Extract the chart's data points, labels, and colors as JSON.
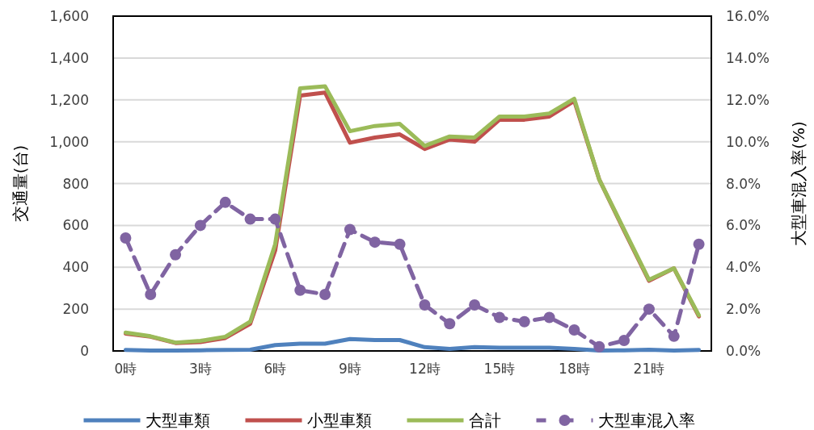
{
  "chart_data": {
    "type": "line",
    "xlabel": null,
    "ylabel": "交通量(台)",
    "y2label": "大型車混入率(%)",
    "categories": [
      "0時",
      null,
      null,
      "3時",
      null,
      null,
      "6時",
      null,
      null,
      "9時",
      null,
      null,
      "12時",
      null,
      null,
      "15時",
      null,
      null,
      "18時",
      null,
      null,
      "21時",
      null,
      null
    ],
    "ylim": [
      0,
      1600
    ],
    "yticks": [
      {
        "value": 0,
        "label": "0"
      },
      {
        "value": 200,
        "label": "200"
      },
      {
        "value": 400,
        "label": "400"
      },
      {
        "value": 600,
        "label": "600"
      },
      {
        "value": 800,
        "label": "800"
      },
      {
        "value": 1000,
        "label": "1,000"
      },
      {
        "value": 1200,
        "label": "1,200"
      },
      {
        "value": 1400,
        "label": "1,400"
      },
      {
        "value": 1600,
        "label": "1,600"
      }
    ],
    "y2lim": [
      0,
      16
    ],
    "y2ticks": [
      {
        "value": 0,
        "label": "0.0%"
      },
      {
        "value": 2,
        "label": "2.0%"
      },
      {
        "value": 4,
        "label": "4.0%"
      },
      {
        "value": 6,
        "label": "6.0%"
      },
      {
        "value": 8,
        "label": "8.0%"
      },
      {
        "value": 10,
        "label": "10.0%"
      },
      {
        "value": 12,
        "label": "12.0%"
      },
      {
        "value": 14,
        "label": "14.0%"
      },
      {
        "value": 16,
        "label": "16.0%"
      }
    ],
    "grid": "y",
    "legend": "bottom",
    "series": [
      {
        "name": "大型車類",
        "color": "#4f81bd",
        "values": [
          5,
          2,
          2,
          3,
          5,
          6,
          28,
          35,
          35,
          57,
          52,
          52,
          18,
          10,
          18,
          15,
          15,
          15,
          10,
          2,
          3,
          6,
          2,
          5
        ]
      },
      {
        "name": "小型車類",
        "color": "#c0504d",
        "values": [
          83,
          68,
          38,
          42,
          62,
          130,
          480,
          1220,
          1235,
          995,
          1020,
          1035,
          965,
          1010,
          1000,
          1105,
          1105,
          1120,
          1195,
          820,
          575,
          335,
          395,
          165
        ]
      },
      {
        "name": "合計",
        "color": "#9bbb59",
        "values": [
          88,
          70,
          40,
          48,
          68,
          140,
          510,
          1255,
          1265,
          1050,
          1075,
          1085,
          980,
          1025,
          1020,
          1120,
          1120,
          1135,
          1205,
          820,
          580,
          340,
          395,
          170
        ]
      },
      {
        "name": "大型車混入率",
        "color": "#8064a2",
        "axis": "y2",
        "marker": "circle",
        "line_style": "dashed",
        "values": [
          5.4,
          2.7,
          4.6,
          6.0,
          7.1,
          6.3,
          6.3,
          2.9,
          2.7,
          5.8,
          5.2,
          5.1,
          2.2,
          1.3,
          2.2,
          1.6,
          1.4,
          1.6,
          1.0,
          0.2,
          0.5,
          2.0,
          0.7,
          5.1
        ]
      }
    ]
  }
}
